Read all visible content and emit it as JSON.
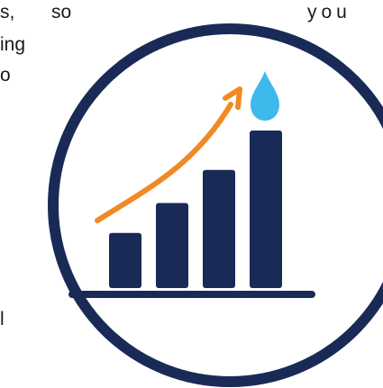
{
  "text_fragments": {
    "row1_left": "s,",
    "row1_mid": "so",
    "row1_right": "you",
    "row2": "ing",
    "row3": "o",
    "row4": "l"
  },
  "illustration": {
    "icon": "growth-chart-water-drop-icon",
    "colors": {
      "ring": "#1a2a57",
      "bars": "#1a2a57",
      "baseline": "#1a2a57",
      "arrow": "#f08a24",
      "drop": "#3fb9ea",
      "background": "#ffffff"
    },
    "bars_relative_heights": [
      0.35,
      0.54,
      0.75,
      1.0
    ]
  }
}
